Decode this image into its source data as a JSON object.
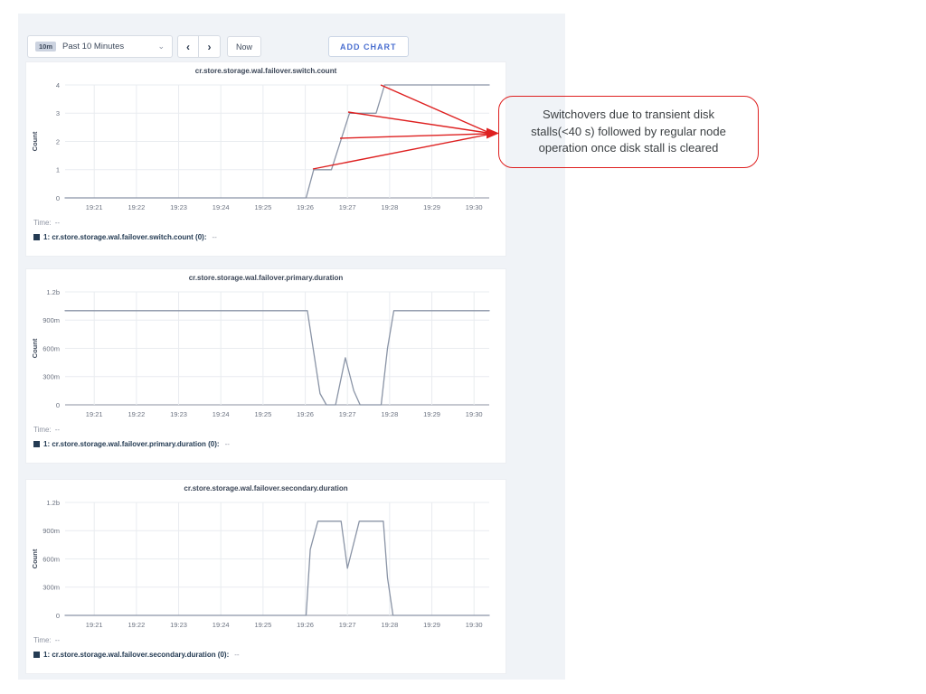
{
  "toolbar": {
    "range_badge": "10m",
    "range_label": "Past 10 Minutes",
    "dropdown_icon": "⌄",
    "prev_icon": "‹",
    "next_icon": "›",
    "now_label": "Now",
    "add_chart_label": "ADD CHART"
  },
  "annotation": {
    "text": "Switchovers due to transient disk stalls(<40 s) followed by regular node operation once disk stall is cleared",
    "lines": [
      "Switchovers due to transient disk",
      "stalls(<40 s) followed by regular node",
      "operation once disk stall is cleared"
    ],
    "color": "#de2020"
  },
  "colors": {
    "panel_bg": "#f0f3f7",
    "line": "#8a94a6",
    "grid": "#e9ecf0",
    "baseline": "#8b92a0",
    "tick_text": "#6b7280",
    "title_text": "#3c4758",
    "legend_swatch": "#243b53",
    "accent_blue": "#4a6fd0",
    "annotation_red": "#de2020"
  },
  "chart_data": [
    {
      "type": "line",
      "title": "cr.store.storage.wal.failover.switch.count",
      "ylabel": "Count",
      "ylim": [
        0,
        4.32
      ],
      "y_ticks": [
        {
          "label": "4",
          "value": 4
        },
        {
          "label": "3",
          "value": 3
        },
        {
          "label": "2",
          "value": 2
        },
        {
          "label": "1",
          "value": 1
        },
        {
          "label": "0",
          "value": 0
        }
      ],
      "x_ticks": [
        {
          "label": "19:21",
          "m": 21
        },
        {
          "label": "19:22",
          "m": 22
        },
        {
          "label": "19:23",
          "m": 23
        },
        {
          "label": "19:24",
          "m": 24
        },
        {
          "label": "19:25",
          "m": 25
        },
        {
          "label": "19:26",
          "m": 26
        },
        {
          "label": "19:27",
          "m": 27
        },
        {
          "label": "19:28",
          "m": 28
        },
        {
          "label": "19:29",
          "m": 29
        },
        {
          "label": "19:30",
          "m": 30
        }
      ],
      "xlim": [
        20.31,
        30.36
      ],
      "points": [
        [
          20.31,
          0
        ],
        [
          26.02,
          0
        ],
        [
          26.2,
          1
        ],
        [
          26.62,
          1
        ],
        [
          27.05,
          3
        ],
        [
          27.68,
          3
        ],
        [
          27.88,
          4
        ],
        [
          30.36,
          4
        ]
      ],
      "legend": {
        "time_label": "Time:",
        "time_value": "--",
        "series_label": "1: cr.store.storage.wal.failover.switch.count (0):",
        "series_value": "--"
      }
    },
    {
      "type": "line",
      "title": "cr.store.storage.wal.failover.primary.duration",
      "ylabel": "Count",
      "ylim": [
        0,
        1290
      ],
      "y_ticks": [
        {
          "label": "1.2b",
          "value": 1200
        },
        {
          "label": "900m",
          "value": 900
        },
        {
          "label": "600m",
          "value": 600
        },
        {
          "label": "300m",
          "value": 300
        },
        {
          "label": "0",
          "value": 0
        }
      ],
      "x_ticks": [
        {
          "label": "19:21",
          "m": 21
        },
        {
          "label": "19:22",
          "m": 22
        },
        {
          "label": "19:23",
          "m": 23
        },
        {
          "label": "19:24",
          "m": 24
        },
        {
          "label": "19:25",
          "m": 25
        },
        {
          "label": "19:26",
          "m": 26
        },
        {
          "label": "19:27",
          "m": 27
        },
        {
          "label": "19:28",
          "m": 28
        },
        {
          "label": "19:29",
          "m": 29
        },
        {
          "label": "19:30",
          "m": 30
        }
      ],
      "xlim": [
        20.31,
        30.36
      ],
      "points": [
        [
          20.31,
          1000
        ],
        [
          26.05,
          1000
        ],
        [
          26.35,
          120
        ],
        [
          26.5,
          0
        ],
        [
          26.72,
          0
        ],
        [
          26.95,
          500
        ],
        [
          27.15,
          150
        ],
        [
          27.3,
          0
        ],
        [
          27.8,
          0
        ],
        [
          27.95,
          600
        ],
        [
          28.1,
          1000
        ],
        [
          30.36,
          1000
        ]
      ],
      "legend": {
        "time_label": "Time:",
        "time_value": "--",
        "series_label": "1: cr.store.storage.wal.failover.primary.duration (0):",
        "series_value": "--"
      }
    },
    {
      "type": "line",
      "title": "cr.store.storage.wal.failover.secondary.duration",
      "ylabel": "Count",
      "ylim": [
        0,
        1290
      ],
      "y_ticks": [
        {
          "label": "1.2b",
          "value": 1200
        },
        {
          "label": "900m",
          "value": 900
        },
        {
          "label": "600m",
          "value": 600
        },
        {
          "label": "300m",
          "value": 300
        },
        {
          "label": "0",
          "value": 0
        }
      ],
      "x_ticks": [
        {
          "label": "19:21",
          "m": 21
        },
        {
          "label": "19:22",
          "m": 22
        },
        {
          "label": "19:23",
          "m": 23
        },
        {
          "label": "19:24",
          "m": 24
        },
        {
          "label": "19:25",
          "m": 25
        },
        {
          "label": "19:26",
          "m": 26
        },
        {
          "label": "19:27",
          "m": 27
        },
        {
          "label": "19:28",
          "m": 28
        },
        {
          "label": "19:29",
          "m": 29
        },
        {
          "label": "19:30",
          "m": 30
        }
      ],
      "xlim": [
        20.31,
        30.36
      ],
      "points": [
        [
          20.31,
          0
        ],
        [
          26.02,
          0
        ],
        [
          26.12,
          700
        ],
        [
          26.3,
          1000
        ],
        [
          26.85,
          1000
        ],
        [
          27.0,
          500
        ],
        [
          27.28,
          1000
        ],
        [
          27.85,
          1000
        ],
        [
          27.95,
          400
        ],
        [
          28.08,
          0
        ],
        [
          30.36,
          0
        ]
      ],
      "legend": {
        "time_label": "Time:",
        "time_value": "--",
        "series_label": "1: cr.store.storage.wal.failover.secondary.duration (0):",
        "series_value": "--"
      }
    }
  ]
}
